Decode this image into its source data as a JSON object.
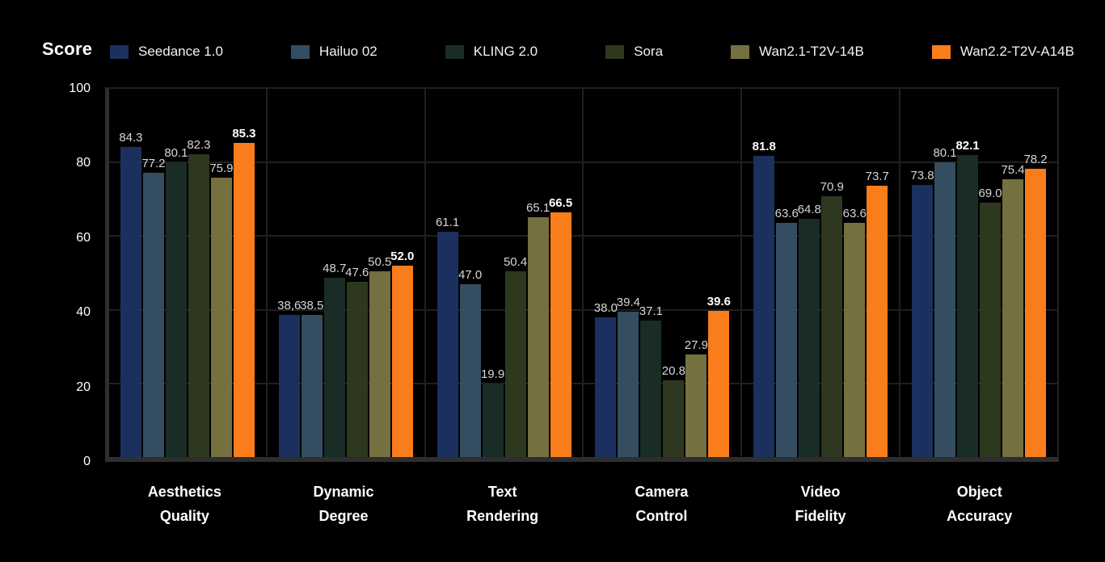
{
  "title": "Score",
  "legend": [
    {
      "name": "Seedance 1.0",
      "color": "#1b305e"
    },
    {
      "name": "Hailuo 02",
      "color": "#344d61"
    },
    {
      "name": "KLING 2.0",
      "color": "#192c25"
    },
    {
      "name": "Sora",
      "color": "#2e381f"
    },
    {
      "name": "Wan2.1-T2V-14B",
      "color": "#75703f"
    },
    {
      "name": "Wan2.2-T2V-A14B",
      "color": "#fa7d1b"
    }
  ],
  "y_axis": {
    "ticks": [
      100,
      80,
      60,
      40,
      20,
      0
    ]
  },
  "chart_data": {
    "type": "bar",
    "title": "Score",
    "categories": [
      "Aesthetics Quality",
      "Dynamic Degree",
      "Text Rendering",
      "Camera Control",
      "Video Fidelity",
      "Object Accuracy"
    ],
    "category_label_lines": [
      [
        "Aesthetics",
        "Quality"
      ],
      [
        "Dynamic",
        "Degree"
      ],
      [
        "Text",
        "Rendering"
      ],
      [
        "Camera",
        "Control"
      ],
      [
        "Video",
        "Fidelity"
      ],
      [
        "Object",
        "Accuracy"
      ]
    ],
    "series": [
      {
        "name": "Seedance 1.0",
        "color": "#1b305e",
        "values": [
          84.3,
          38.6,
          61.1,
          38.0,
          81.8,
          73.8
        ],
        "labels": [
          "84.3",
          "38,6",
          "61.1",
          "38.0",
          "81.8",
          "73.8"
        ]
      },
      {
        "name": "Hailuo 02",
        "color": "#344d61",
        "values": [
          77.2,
          38.5,
          47.0,
          39.4,
          63.6,
          80.1
        ],
        "labels": [
          "77.2",
          "38.5",
          "47.0",
          "39.4",
          "63.6",
          "80.1"
        ]
      },
      {
        "name": "KLING 2.0",
        "color": "#192c25",
        "values": [
          80.1,
          48.7,
          19.9,
          37.1,
          64.8,
          82.1
        ],
        "labels": [
          "80.1",
          "48.7",
          "19.9",
          "37.1",
          "64.8",
          "82.1"
        ]
      },
      {
        "name": "Sora",
        "color": "#2e381f",
        "values": [
          82.3,
          47.6,
          50.4,
          20.8,
          70.9,
          69.0
        ],
        "labels": [
          "82.3",
          "47.6",
          "50.4",
          "20.8",
          "70.9",
          "69.0"
        ]
      },
      {
        "name": "Wan2.1-T2V-14B",
        "color": "#75703f",
        "values": [
          75.9,
          50.5,
          65.1,
          27.9,
          63.6,
          75.4
        ],
        "labels": [
          "75.9",
          "50.5",
          "65.1",
          "27.9",
          "63.6",
          "75.4"
        ]
      },
      {
        "name": "Wan2.2-T2V-A14B",
        "color": "#fa7d1b",
        "values": [
          85.3,
          52.0,
          66.5,
          39.6,
          73.7,
          78.2
        ],
        "labels": [
          "85.3",
          "52.0",
          "66.5",
          "39.6",
          "73.7",
          "78.2"
        ]
      }
    ],
    "ylim": [
      0,
      100
    ],
    "yticks": [
      0,
      20,
      40,
      60,
      80,
      100
    ],
    "grid": true,
    "legend_position": "top",
    "annotation_rule": "maximum value in each category rendered bold white"
  },
  "colors": {
    "background": "#000000",
    "axis": "#2e2e2e",
    "gridline": "#1f1f1f",
    "value_label": "#d6d6d6",
    "value_label_max": "#ffffff",
    "text": "#ffffff"
  }
}
